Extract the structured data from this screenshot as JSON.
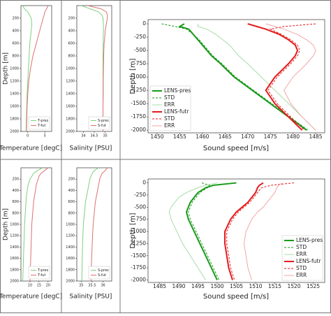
{
  "chart_data": [
    {
      "type": "line",
      "xlabel": "Temperature [degC]",
      "ylabel": "Depth [m]",
      "y": [
        0,
        50,
        100,
        150,
        200,
        300,
        400,
        500,
        600,
        800,
        1000,
        1200,
        1400,
        1600,
        1800,
        2000
      ],
      "ylim": [
        0,
        2000
      ],
      "invert_y": true,
      "yticks": [
        200,
        400,
        600,
        800,
        1000,
        1200,
        1400,
        1600,
        1800,
        2000
      ],
      "xlim": [
        -2,
        7
      ],
      "xticks": [
        0,
        5
      ],
      "legend": "lower right",
      "series": [
        {
          "name": "T-pres",
          "color": "#7fcf7f",
          "style": "solid",
          "linewidth": 1,
          "values": [
            -1.5,
            -1,
            0,
            0.5,
            1,
            1.2,
            1,
            0.8,
            0.6,
            0.4,
            0.2,
            0,
            -0.2,
            -0.3,
            -0.4,
            -0.5
          ]
        },
        {
          "name": "T-fut",
          "color": "#e07070",
          "style": "solid",
          "linewidth": 1,
          "values": [
            6,
            5.5,
            5,
            4.8,
            4.5,
            4,
            3.5,
            3,
            2.5,
            1.5,
            0.8,
            0.3,
            0,
            -0.2,
            -0.3,
            -0.4
          ]
        }
      ]
    },
    {
      "type": "line",
      "xlabel": "Salinity [PSU]",
      "y": [
        0,
        50,
        100,
        150,
        200,
        300,
        400,
        500,
        600,
        800,
        1000,
        1200,
        1400,
        1600,
        1800,
        2000
      ],
      "ylim": [
        0,
        2000
      ],
      "invert_y": true,
      "yticks": [
        200,
        400,
        600,
        800,
        1000,
        1200,
        1400,
        1600,
        1800,
        2000
      ],
      "xlim": [
        33.7,
        35.3
      ],
      "xticks": [
        34,
        34.5,
        35
      ],
      "legend": "lower right",
      "series": [
        {
          "name": "S-pres",
          "color": "#7fcf7f",
          "style": "solid",
          "linewidth": 1,
          "values": [
            33.9,
            34.3,
            34.7,
            34.85,
            34.9,
            34.92,
            34.92,
            34.91,
            34.91,
            34.9,
            34.9,
            34.9,
            34.9,
            34.9,
            34.9,
            34.9
          ]
        },
        {
          "name": "S-fut",
          "color": "#e07070",
          "style": "solid",
          "linewidth": 1,
          "values": [
            34.2,
            34.8,
            35.05,
            35.1,
            35.1,
            35.05,
            35,
            34.98,
            34.95,
            34.93,
            34.92,
            34.91,
            34.91,
            34.9,
            34.9,
            34.9
          ]
        }
      ]
    },
    {
      "type": "line",
      "xlabel": "Sound speed [m/s]",
      "ylabel": "Depth [m]",
      "y": [
        0,
        -50,
        -100,
        -200,
        -300,
        -400,
        -500,
        -600,
        -750,
        -1000,
        -1250,
        -1500,
        -1750,
        -2000
      ],
      "ylim": [
        -2050,
        80
      ],
      "yticks": [
        0,
        -250,
        -500,
        -750,
        -1000,
        -1250,
        -1500,
        -1750,
        -2000
      ],
      "xlim": [
        1448,
        1487
      ],
      "xticks": [
        1450,
        1455,
        1460,
        1465,
        1470,
        1475,
        1480,
        1485
      ],
      "legend": "lower left",
      "series": [
        {
          "name": "LENS-pres",
          "color": "#1a9a1a",
          "style": "solid",
          "linewidth": 2,
          "values": [
            1456,
            1455,
            1457,
            1458,
            1459,
            1460,
            1461,
            1462,
            1464,
            1467,
            1471,
            1475,
            1479,
            1483
          ]
        },
        {
          "name": "STD",
          "color": "#1a9a1a",
          "style": "dashed",
          "linewidth": 1,
          "values": [
            1451,
            1454,
            1456.5,
            1458,
            1459.3,
            1460.3,
            1461.3,
            1462.3,
            1464.3,
            1467.3,
            1471.3,
            1475.3,
            1479.3,
            1483.3
          ]
        },
        {
          "name": "ERR",
          "color": "#a8dca8",
          "style": "solid",
          "linewidth": 1,
          "values": [
            1459,
            1459,
            1461,
            1463,
            1464.5,
            1466,
            1467,
            1468,
            1470,
            1473,
            1476,
            1479,
            1482,
            1485
          ]
        },
        {
          "name": "LENS-futr",
          "color": "#e41a1c",
          "style": "solid",
          "linewidth": 2,
          "values": [
            1470,
            1472,
            1474,
            1477,
            1479,
            1480.5,
            1481,
            1480.5,
            1479,
            1476,
            1474,
            1476,
            1479,
            1482
          ]
        },
        {
          "name": "STD",
          "color": "#e41a1c",
          "style": "dashed",
          "linewidth": 1,
          "values": [
            1485,
            1478,
            1475,
            1477.5,
            1479.5,
            1481,
            1481.5,
            1481,
            1479.5,
            1476.5,
            1474.5,
            1476.5,
            1479.5,
            1482.5
          ]
        },
        {
          "name": "ERR",
          "color": "#f4a6a6",
          "style": "solid",
          "linewidth": 1,
          "values": [
            1474,
            1476,
            1478,
            1481,
            1483,
            1484.5,
            1485,
            1484.5,
            1483,
            1480,
            1478,
            1479.5,
            1482,
            1485
          ]
        }
      ]
    },
    {
      "type": "line",
      "xlabel": "Temperature [degC]",
      "ylabel": "Depth [m]",
      "y": [
        0,
        50,
        100,
        150,
        200,
        300,
        400,
        500,
        600,
        800,
        1000,
        1200,
        1400,
        1600,
        1800,
        2000
      ],
      "ylim": [
        0,
        2000
      ],
      "invert_y": true,
      "yticks": [
        200,
        400,
        600,
        800,
        1000,
        1200,
        1400,
        1600,
        1800,
        2000
      ],
      "xlim": [
        5,
        22
      ],
      "xticks": [
        10,
        15,
        20
      ],
      "legend": "lower right",
      "series": [
        {
          "name": "T-pres",
          "color": "#7fcf7f",
          "style": "solid",
          "linewidth": 1,
          "values": [
            17,
            14,
            12,
            11,
            10,
            9,
            8.5,
            8,
            7.8,
            7.4,
            7,
            6.8,
            6.6,
            6.4,
            6.2,
            6
          ]
        },
        {
          "name": "T-fut",
          "color": "#e07070",
          "style": "solid",
          "linewidth": 1,
          "values": [
            20,
            18,
            16,
            15,
            14.5,
            13.5,
            13,
            12.5,
            12,
            11.5,
            11,
            10.8,
            10.6,
            10.4,
            10.2,
            10
          ]
        }
      ]
    },
    {
      "type": "line",
      "xlabel": "Salinity [PSU]",
      "y": [
        0,
        50,
        100,
        150,
        200,
        300,
        400,
        500,
        600,
        800,
        1000,
        1200,
        1400,
        1600,
        1800,
        2000
      ],
      "ylim": [
        0,
        2000
      ],
      "invert_y": true,
      "yticks": [
        200,
        400,
        600,
        800,
        1000,
        1200,
        1400,
        1600,
        1800,
        2000
      ],
      "xlim": [
        34.8,
        36.4
      ],
      "xticks": [
        35,
        35.5,
        36
      ],
      "legend": "lower right",
      "series": [
        {
          "name": "S-pres",
          "color": "#7fcf7f",
          "style": "solid",
          "linewidth": 1,
          "values": [
            35.8,
            35.6,
            35.5,
            35.45,
            35.4,
            35.35,
            35.3,
            35.25,
            35.2,
            35.15,
            35.1,
            35.08,
            35.06,
            35.05,
            35.04,
            35.03
          ]
        },
        {
          "name": "S-fut",
          "color": "#e07070",
          "style": "solid",
          "linewidth": 1,
          "values": [
            36.2,
            36.1,
            35.95,
            35.9,
            35.85,
            35.8,
            35.75,
            35.7,
            35.65,
            35.6,
            35.55,
            35.52,
            35.5,
            35.48,
            35.46,
            35.45
          ]
        }
      ]
    },
    {
      "type": "line",
      "xlabel": "Sound speed [m/s]",
      "ylabel": "Depth [m]",
      "y": [
        0,
        -50,
        -100,
        -200,
        -300,
        -400,
        -500,
        -600,
        -750,
        -1000,
        -1250,
        -1500,
        -1750,
        -2000
      ],
      "ylim": [
        -2050,
        80
      ],
      "yticks": [
        0,
        -250,
        -500,
        -750,
        -1000,
        -1250,
        -1500,
        -1750,
        -2000
      ],
      "xlim": [
        1482,
        1528
      ],
      "xticks": [
        1485,
        1490,
        1495,
        1500,
        1505,
        1510,
        1515,
        1520,
        1525
      ],
      "legend": "lower right",
      "series": [
        {
          "name": "LENS-pres",
          "color": "#1a9a1a",
          "style": "solid",
          "linewidth": 2,
          "values": [
            1505,
            1499,
            1497,
            1495,
            1494,
            1493,
            1492.5,
            1492,
            1492.5,
            1494,
            1495.5,
            1497,
            1498.5,
            1500
          ]
        },
        {
          "name": "STD",
          "color": "#1a9a1a",
          "style": "dashed",
          "linewidth": 1,
          "values": [
            1496,
            1498,
            1497.5,
            1495.5,
            1494.5,
            1493.5,
            1493,
            1492.5,
            1493,
            1494.5,
            1496,
            1497.5,
            1499,
            1500.5
          ]
        },
        {
          "name": "ERR",
          "color": "#a8dca8",
          "style": "solid",
          "linewidth": 1,
          "values": [
            1500,
            1497,
            1495,
            1492,
            1490,
            1489,
            1488,
            1487.5,
            1488,
            1489.5,
            1491,
            1493,
            1495,
            1497
          ]
        },
        {
          "name": "LENS-futr",
          "color": "#e41a1c",
          "style": "solid",
          "linewidth": 2,
          "values": [
            1512,
            1511,
            1510.5,
            1510,
            1509,
            1508,
            1506.5,
            1505,
            1503.5,
            1502,
            1502,
            1502.5,
            1503,
            1504
          ]
        },
        {
          "name": "STD",
          "color": "#e41a1c",
          "style": "dashed",
          "linewidth": 1,
          "values": [
            1520,
            1514,
            1511.5,
            1510.5,
            1509.5,
            1508.5,
            1507,
            1505.5,
            1504,
            1502.5,
            1502.5,
            1503,
            1503.5,
            1504.5
          ]
        },
        {
          "name": "ERR",
          "color": "#f4a6a6",
          "style": "solid",
          "linewidth": 1,
          "values": [
            1517,
            1516,
            1515.5,
            1515,
            1514,
            1513,
            1512,
            1510.5,
            1509,
            1507.5,
            1507,
            1507.5,
            1508,
            1509
          ]
        }
      ]
    }
  ]
}
